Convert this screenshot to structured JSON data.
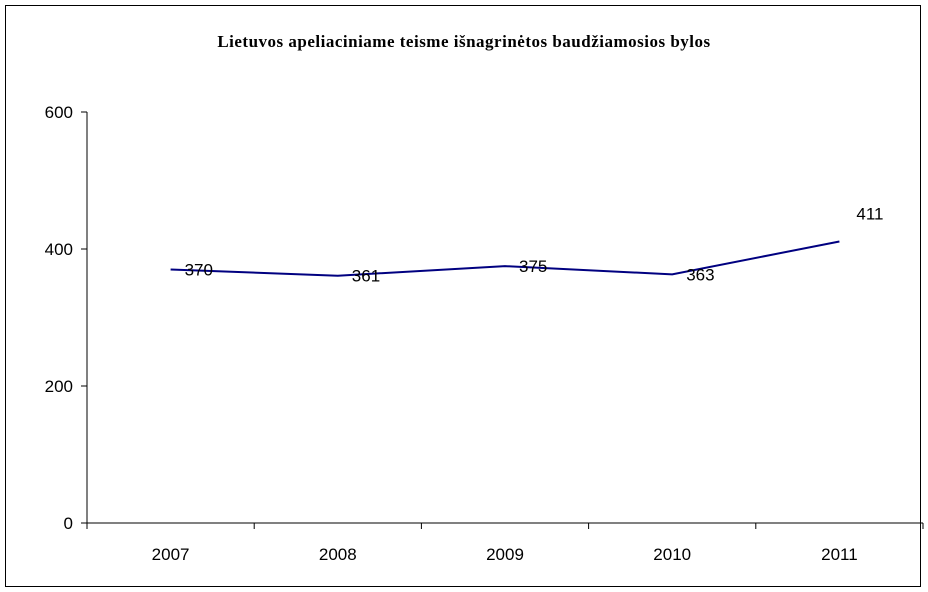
{
  "chart_data": {
    "type": "line",
    "title": "Lietuvos apeliaciniame teisme išnagrinėtos baudžiamosios bylos",
    "categories": [
      "2007",
      "2008",
      "2009",
      "2010",
      "2011"
    ],
    "values": [
      370,
      361,
      375,
      363,
      411
    ],
    "value_labels": [
      "370",
      "361",
      "375",
      "363",
      "411"
    ],
    "y_ticks": [
      "0",
      "200",
      "400",
      "600"
    ],
    "ylim": [
      0,
      600
    ],
    "grid": false,
    "legend": "none",
    "line_color": "#000080"
  }
}
